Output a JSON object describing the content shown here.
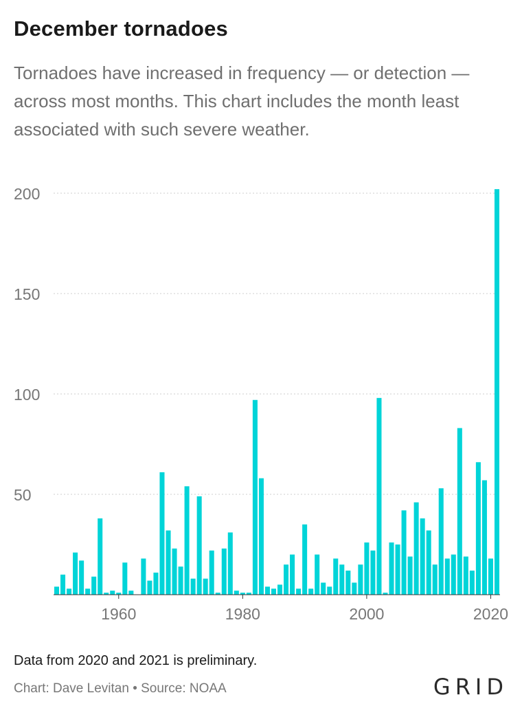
{
  "title": "December tornadoes",
  "subtitle": "Tornadoes have increased in frequency — or detection — across most months. This chart includes the month least associated with such severe weather.",
  "note": "Data from 2020 and 2021 is preliminary.",
  "credit": "Chart: Dave Levitan • Source: NOAA",
  "logo": "GRID",
  "colors": {
    "bar": "#00d4d8",
    "grid": "#cccccc",
    "tick": "#777777"
  },
  "chart_data": {
    "type": "bar",
    "title": "December tornadoes",
    "xlabel": "",
    "ylabel": "",
    "ylim": [
      0,
      200
    ],
    "yticks": [
      50,
      100,
      150,
      200
    ],
    "xticks": [
      1960,
      1980,
      2000,
      2020
    ],
    "grid": true,
    "x": [
      1950,
      1951,
      1952,
      1953,
      1954,
      1955,
      1956,
      1957,
      1958,
      1959,
      1960,
      1961,
      1962,
      1963,
      1964,
      1965,
      1966,
      1967,
      1968,
      1969,
      1970,
      1971,
      1972,
      1973,
      1974,
      1975,
      1976,
      1977,
      1978,
      1979,
      1980,
      1981,
      1982,
      1983,
      1984,
      1985,
      1986,
      1987,
      1988,
      1989,
      1990,
      1991,
      1992,
      1993,
      1994,
      1995,
      1996,
      1997,
      1998,
      1999,
      2000,
      2001,
      2002,
      2003,
      2004,
      2005,
      2006,
      2007,
      2008,
      2009,
      2010,
      2011,
      2012,
      2013,
      2014,
      2015,
      2016,
      2017,
      2018,
      2019,
      2020,
      2021
    ],
    "values": [
      4,
      10,
      3,
      21,
      17,
      3,
      9,
      38,
      1,
      2,
      1,
      16,
      2,
      0,
      18,
      7,
      11,
      61,
      32,
      23,
      14,
      54,
      8,
      49,
      8,
      22,
      1,
      23,
      31,
      2,
      1,
      1,
      97,
      58,
      4,
      3,
      5,
      15,
      20,
      3,
      35,
      3,
      20,
      6,
      4,
      18,
      15,
      12,
      6,
      15,
      26,
      22,
      98,
      1,
      26,
      25,
      42,
      19,
      46,
      38,
      32,
      15,
      53,
      18,
      20,
      83,
      19,
      12,
      66,
      57,
      18,
      202
    ]
  }
}
